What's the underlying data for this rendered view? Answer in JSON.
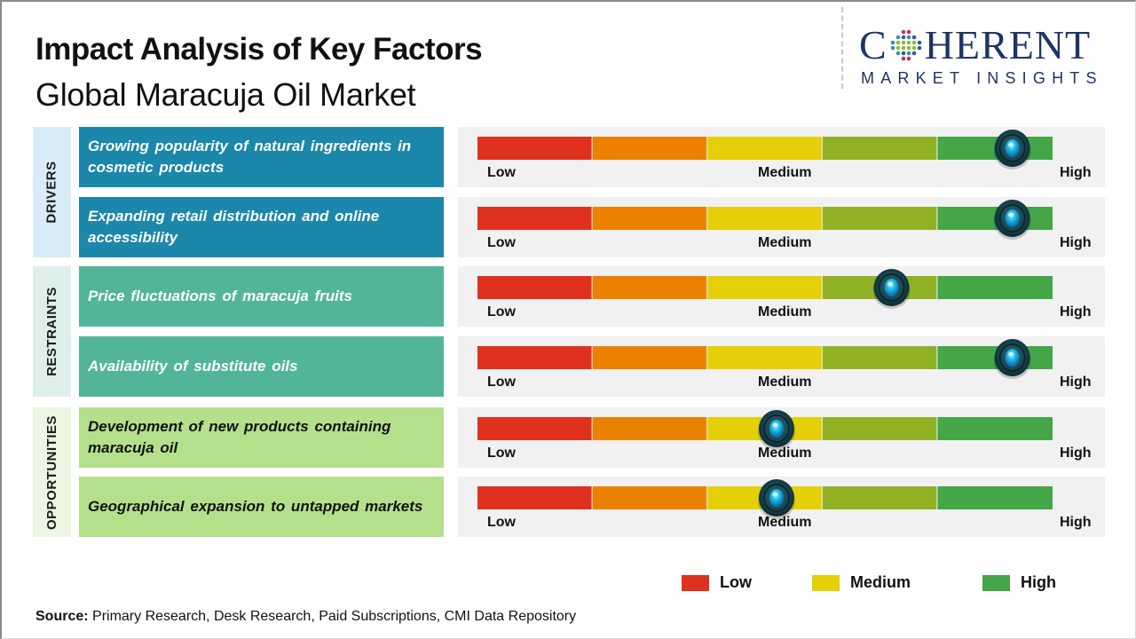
{
  "header": {
    "title": "Impact Analysis of Key Factors",
    "subtitle": "Global Maracuja Oil Market"
  },
  "logo": {
    "main_prefix": "C",
    "main_suffix": "HERENT",
    "sub": "MARKET INSIGHTS",
    "brand_color": "#1d3466"
  },
  "categories": {
    "drivers": "DRIVERS",
    "restraints": "RESTRAINTS",
    "opportunities": "OPPORTUNITIES"
  },
  "gauge_labels": {
    "low": "Low",
    "medium": "Medium",
    "high": "High"
  },
  "legend": [
    {
      "label": "Low",
      "color": "#e0301e"
    },
    {
      "label": "Medium",
      "color": "#e4cf08"
    },
    {
      "label": "High",
      "color": "#44a647"
    }
  ],
  "source": {
    "label": "Source:",
    "text": " Primary Research, Desk Research, Paid Subscriptions, CMI Data Repository"
  },
  "chart_data": {
    "type": "gauge-table",
    "title": "Impact Analysis of Key Factors",
    "subtitle": "Global Maracuja Oil Market",
    "scale": {
      "min": 0,
      "max": 1,
      "tick_labels": [
        "Low",
        "Medium",
        "High"
      ]
    },
    "segment_colors": [
      "#e0301e",
      "#ec8100",
      "#e4cf08",
      "#91b125",
      "#44a647"
    ],
    "legend_placement": "bottom-right",
    "factors": [
      {
        "category": "Drivers",
        "text": "Growing popularity of natural ingredients in cosmetic products",
        "impact": 0.93,
        "impact_level": "High"
      },
      {
        "category": "Drivers",
        "text": "Expanding retail distribution and online accessibility",
        "impact": 0.93,
        "impact_level": "High"
      },
      {
        "category": "Restraints",
        "text": "Price fluctuations of maracuja fruits",
        "impact": 0.72,
        "impact_level": "Medium-High"
      },
      {
        "category": "Restraints",
        "text": "Availability of substitute oils",
        "impact": 0.93,
        "impact_level": "High"
      },
      {
        "category": "Opportunities",
        "text": "Development of new products containing maracuja oil",
        "impact": 0.52,
        "impact_level": "Medium"
      },
      {
        "category": "Opportunities",
        "text": "Geographical expansion to untapped markets",
        "impact": 0.52,
        "impact_level": "Medium"
      }
    ]
  }
}
